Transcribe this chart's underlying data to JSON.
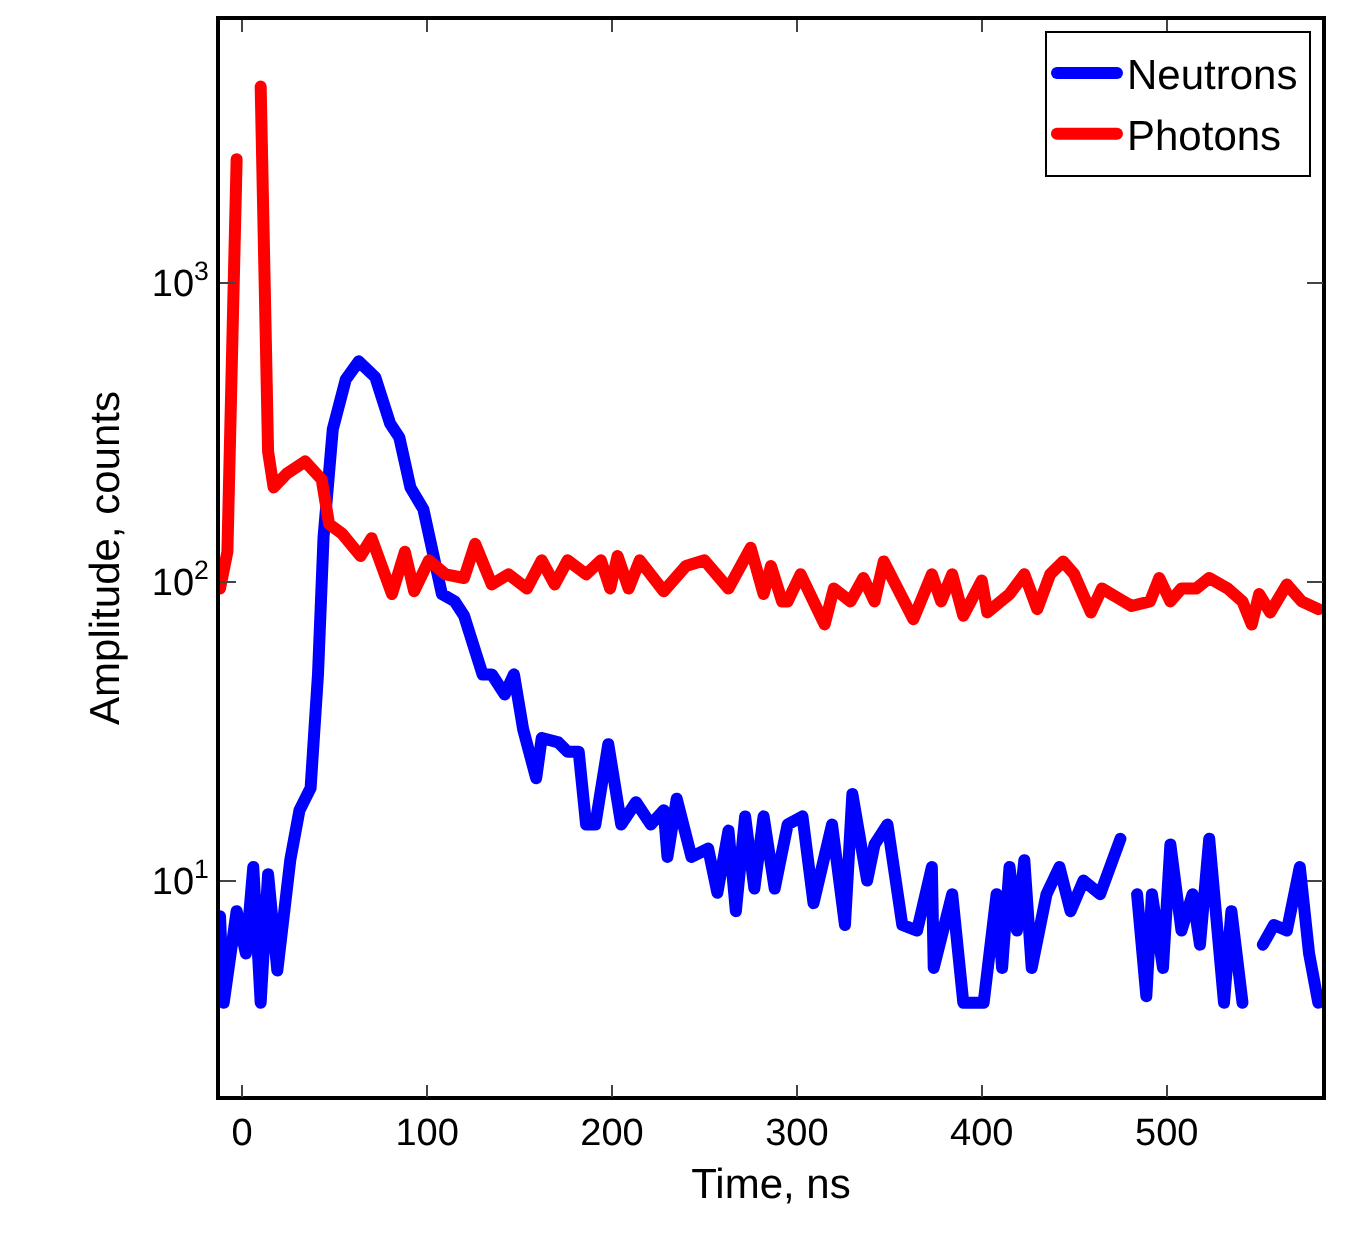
{
  "chart_data": {
    "type": "line",
    "xlabel": "Time, ns",
    "ylabel": "Amplitude, counts",
    "log": "y",
    "grid": false,
    "legend": "top right",
    "line_style": "solid",
    "marker": "none",
    "xlim": [
      -12,
      584
    ],
    "xticks": [
      0,
      100,
      200,
      300,
      400,
      500
    ],
    "ylim": [
      1.9,
      7600
    ],
    "yticks": [
      {
        "value": 10,
        "label": "10$^{1}$"
      },
      {
        "value": 100,
        "label": "10$^{2}$"
      },
      {
        "value": 1000,
        "label": "10$^{3}$"
      }
    ],
    "series": [
      {
        "name": "Neutrons",
        "color": "#0000ff",
        "x": [
          -12,
          -10,
          -3,
          2,
          6,
          10,
          14,
          19,
          26,
          31,
          37,
          41,
          44,
          49,
          56,
          63,
          72,
          80,
          85,
          91,
          98,
          108,
          115,
          120,
          130,
          135,
          142,
          147,
          152,
          159,
          162,
          171,
          176,
          182,
          186,
          191,
          198,
          205,
          213,
          221,
          228,
          230,
          235,
          243,
          252,
          257,
          263,
          267,
          272,
          277,
          282,
          288,
          295,
          303,
          309,
          319,
          326,
          330,
          338,
          342,
          349,
          357,
          365,
          373,
          374,
          384,
          390,
          401,
          408,
          411,
          415,
          419,
          423,
          427,
          435,
          442,
          448,
          455,
          464,
          475,
          479,
          484,
          489,
          492,
          498,
          502,
          508,
          514,
          518,
          523,
          531,
          535,
          541,
          546,
          552,
          558,
          565,
          572,
          577,
          582
        ],
        "values": [
          7.6,
          3.9,
          7.9,
          5.7,
          11.1,
          3.9,
          10.5,
          5.0,
          11.7,
          17.2,
          20.4,
          49,
          141,
          324,
          476,
          547,
          484,
          339,
          304,
          207,
          175,
          91,
          86,
          77,
          49,
          49,
          42,
          49,
          32,
          22,
          30,
          29,
          27,
          27,
          15.4,
          15.4,
          28.6,
          15.4,
          18.3,
          15.4,
          17.2,
          12.0,
          18.8,
          12.0,
          12.8,
          9.1,
          14.7,
          7.9,
          16.4,
          9.4,
          16.4,
          9.4,
          15.4,
          16.4,
          8.4,
          15.4,
          7.1,
          19.5,
          10,
          13.2,
          15.4,
          7.1,
          6.8,
          11.1,
          5.1,
          9.0,
          3.9,
          3.9,
          9.0,
          5.1,
          11.1,
          6.8,
          11.7,
          5.1,
          9.0,
          11.1,
          7.9,
          10,
          9.0,
          13.8,
          null,
          9.0,
          4.1,
          9.0,
          5.1,
          13.2,
          6.8,
          9.0,
          6.1,
          13.8,
          3.9,
          7.9,
          3.9,
          null,
          6.1,
          7.1,
          6.8,
          11.1,
          5.7,
          3.9
        ]
      },
      {
        "name": "Photons",
        "color": "#ff0000",
        "x": [
          -12,
          -8,
          -3,
          2,
          10,
          14,
          17,
          24,
          34,
          43,
          47,
          54,
          64,
          70,
          81,
          88,
          93,
          101,
          110,
          120,
          126,
          135,
          144,
          154,
          162,
          169,
          176,
          186,
          194,
          199,
          203,
          209,
          215,
          228,
          240,
          250,
          263,
          275,
          282,
          286,
          292,
          295,
          302,
          309,
          315,
          320,
          329,
          336,
          342,
          347,
          356,
          363,
          373,
          378,
          384,
          390,
          400,
          403,
          415,
          423,
          430,
          437,
          444,
          450,
          459,
          465,
          474,
          481,
          491,
          496,
          502,
          508,
          516,
          523,
          533,
          541,
          546,
          550,
          556,
          565,
          573,
          582
        ],
        "values": [
          95,
          126,
          2600,
          null,
          4550,
          273,
          207,
          230,
          253,
          220,
          156,
          145,
          122,
          140,
          91,
          126,
          93,
          118,
          106,
          103,
          134,
          98,
          106,
          95,
          118,
          98,
          118,
          106,
          118,
          95,
          122,
          95,
          118,
          93,
          113,
          118,
          95,
          130,
          91,
          113,
          86,
          86,
          106,
          86,
          72,
          95,
          86,
          103,
          86,
          117,
          91,
          75,
          106,
          86,
          106,
          77,
          101,
          79,
          91,
          106,
          81,
          106,
          117,
          106,
          79,
          95,
          88,
          83,
          86,
          103,
          86,
          95,
          95,
          103,
          95,
          86,
          72,
          91,
          79,
          98,
          86,
          81
        ]
      }
    ]
  }
}
